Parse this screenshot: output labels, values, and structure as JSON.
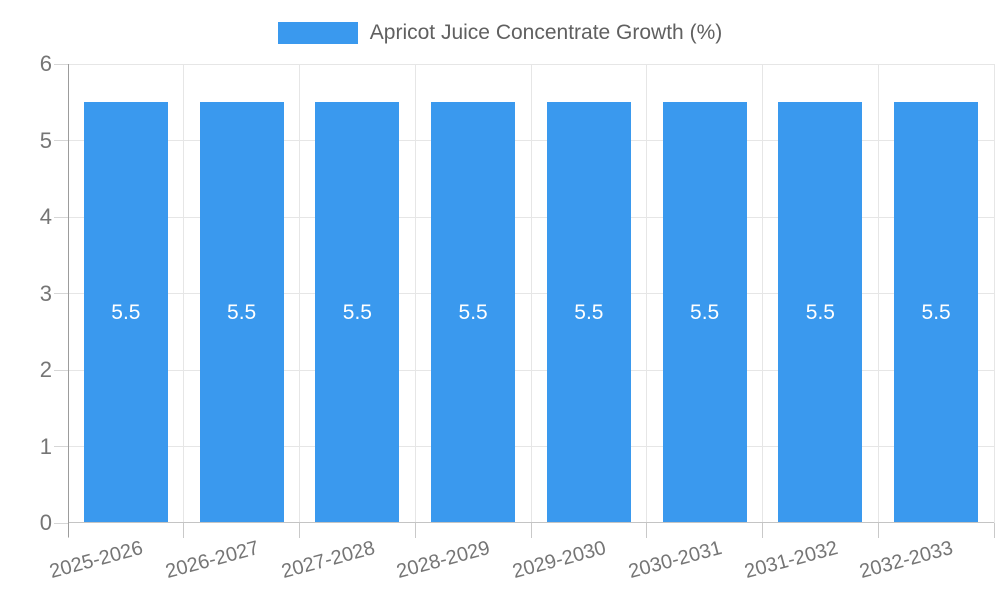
{
  "legend": {
    "series_label": "Apricot Juice Concentrate Growth (%)"
  },
  "chart_data": {
    "type": "bar",
    "title": "Apricot Juice Concentrate Growth (%)",
    "categories": [
      "2025-2026",
      "2026-2027",
      "2027-2028",
      "2028-2029",
      "2029-2030",
      "2030-2031",
      "2031-2032",
      "2032-2033"
    ],
    "values": [
      5.5,
      5.5,
      5.5,
      5.5,
      5.5,
      5.5,
      5.5,
      5.5
    ],
    "value_labels": [
      "5.5",
      "5.5",
      "5.5",
      "5.5",
      "5.5",
      "5.5",
      "5.5",
      "5.5"
    ],
    "xlabel": "",
    "ylabel": "",
    "ylim": [
      0,
      6
    ],
    "yticks": [
      "0",
      "1",
      "2",
      "3",
      "4",
      "5",
      "6"
    ],
    "grid": true,
    "legend_position": "top",
    "x_label_rotation_deg": -15,
    "colors": {
      "bar": "#3a99ee",
      "grid": "#e6e6e6",
      "y_axis": "#9c9c9c",
      "x_axis": "#c4c4c4",
      "tick_text": "#757575",
      "title_text": "#606060",
      "value_label_text": "#ffffff",
      "background": "#ffffff"
    }
  }
}
